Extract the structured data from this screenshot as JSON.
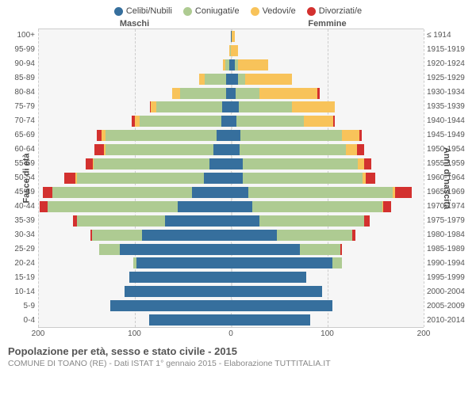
{
  "legend": [
    {
      "label": "Celibi/Nubili",
      "color": "#366f9d"
    },
    {
      "label": "Coniugati/e",
      "color": "#aecb92"
    },
    {
      "label": "Vedovi/e",
      "color": "#f8c35a"
    },
    {
      "label": "Divorziati/e",
      "color": "#d3312f"
    }
  ],
  "headers": {
    "male": "Maschi",
    "female": "Femmine"
  },
  "ylabel_left": "Fasce di età",
  "ylabel_right": "Anni di nascita",
  "title": "Popolazione per età, sesso e stato civile - 2015",
  "subtitle": "COMUNE DI TOANO (RE) - Dati ISTAT 1° gennaio 2015 - Elaborazione TUTTITALIA.IT",
  "xmax": 200,
  "xticks": [
    200,
    100,
    0,
    100,
    200
  ],
  "age_labels": [
    "100+",
    "95-99",
    "90-94",
    "85-89",
    "80-84",
    "75-79",
    "70-74",
    "65-69",
    "60-64",
    "55-59",
    "50-54",
    "45-49",
    "40-44",
    "35-39",
    "30-34",
    "25-29",
    "20-24",
    "15-19",
    "10-14",
    "5-9",
    "0-4"
  ],
  "year_labels": [
    "≤ 1914",
    "1915-1919",
    "1920-1924",
    "1925-1929",
    "1930-1934",
    "1935-1939",
    "1940-1944",
    "1945-1949",
    "1950-1954",
    "1955-1959",
    "1960-1964",
    "1965-1969",
    "1970-1974",
    "1975-1979",
    "1980-1984",
    "1985-1989",
    "1990-1994",
    "1995-1999",
    "2000-2004",
    "2005-2009",
    "2010-2014"
  ],
  "colors": {
    "single": "#366f9d",
    "married": "#aecb92",
    "widowed": "#f8c35a",
    "divorced": "#d3312f",
    "bg": "#f6f6f6",
    "grid": "#cccccc"
  },
  "rows": [
    {
      "m": {
        "s": 0,
        "c": 0,
        "w": 0,
        "d": 0
      },
      "f": {
        "s": 1,
        "c": 0,
        "w": 3,
        "d": 0
      }
    },
    {
      "m": {
        "s": 0,
        "c": 1,
        "w": 1,
        "d": 0
      },
      "f": {
        "s": 0,
        "c": 0,
        "w": 7,
        "d": 0
      }
    },
    {
      "m": {
        "s": 2,
        "c": 4,
        "w": 2,
        "d": 0
      },
      "f": {
        "s": 4,
        "c": 3,
        "w": 32,
        "d": 0
      }
    },
    {
      "m": {
        "s": 5,
        "c": 22,
        "w": 6,
        "d": 0
      },
      "f": {
        "s": 7,
        "c": 8,
        "w": 48,
        "d": 0
      }
    },
    {
      "m": {
        "s": 5,
        "c": 48,
        "w": 8,
        "d": 0
      },
      "f": {
        "s": 5,
        "c": 25,
        "w": 60,
        "d": 2
      }
    },
    {
      "m": {
        "s": 9,
        "c": 68,
        "w": 6,
        "d": 1
      },
      "f": {
        "s": 8,
        "c": 55,
        "w": 45,
        "d": 0
      }
    },
    {
      "m": {
        "s": 10,
        "c": 85,
        "w": 5,
        "d": 3
      },
      "f": {
        "s": 6,
        "c": 70,
        "w": 30,
        "d": 2
      }
    },
    {
      "m": {
        "s": 15,
        "c": 115,
        "w": 4,
        "d": 5
      },
      "f": {
        "s": 10,
        "c": 105,
        "w": 18,
        "d": 3
      }
    },
    {
      "m": {
        "s": 18,
        "c": 112,
        "w": 2,
        "d": 10
      },
      "f": {
        "s": 9,
        "c": 110,
        "w": 12,
        "d": 7
      }
    },
    {
      "m": {
        "s": 22,
        "c": 120,
        "w": 1,
        "d": 8
      },
      "f": {
        "s": 12,
        "c": 120,
        "w": 6,
        "d": 8
      }
    },
    {
      "m": {
        "s": 28,
        "c": 132,
        "w": 1,
        "d": 12
      },
      "f": {
        "s": 12,
        "c": 125,
        "w": 3,
        "d": 10
      }
    },
    {
      "m": {
        "s": 40,
        "c": 145,
        "w": 0,
        "d": 10
      },
      "f": {
        "s": 18,
        "c": 150,
        "w": 2,
        "d": 18
      }
    },
    {
      "m": {
        "s": 55,
        "c": 135,
        "w": 0,
        "d": 8
      },
      "f": {
        "s": 22,
        "c": 135,
        "w": 1,
        "d": 8
      }
    },
    {
      "m": {
        "s": 68,
        "c": 92,
        "w": 0,
        "d": 4
      },
      "f": {
        "s": 30,
        "c": 108,
        "w": 0,
        "d": 6
      }
    },
    {
      "m": {
        "s": 92,
        "c": 52,
        "w": 0,
        "d": 2
      },
      "f": {
        "s": 48,
        "c": 78,
        "w": 0,
        "d": 3
      }
    },
    {
      "m": {
        "s": 115,
        "c": 22,
        "w": 0,
        "d": 0
      },
      "f": {
        "s": 72,
        "c": 42,
        "w": 0,
        "d": 1
      }
    },
    {
      "m": {
        "s": 98,
        "c": 3,
        "w": 0,
        "d": 0
      },
      "f": {
        "s": 105,
        "c": 10,
        "w": 0,
        "d": 0
      }
    },
    {
      "m": {
        "s": 105,
        "c": 0,
        "w": 0,
        "d": 0
      },
      "f": {
        "s": 78,
        "c": 0,
        "w": 0,
        "d": 0
      }
    },
    {
      "m": {
        "s": 110,
        "c": 0,
        "w": 0,
        "d": 0
      },
      "f": {
        "s": 95,
        "c": 0,
        "w": 0,
        "d": 0
      }
    },
    {
      "m": {
        "s": 125,
        "c": 0,
        "w": 0,
        "d": 0
      },
      "f": {
        "s": 105,
        "c": 0,
        "w": 0,
        "d": 0
      }
    },
    {
      "m": {
        "s": 85,
        "c": 0,
        "w": 0,
        "d": 0
      },
      "f": {
        "s": 82,
        "c": 0,
        "w": 0,
        "d": 0
      }
    }
  ]
}
